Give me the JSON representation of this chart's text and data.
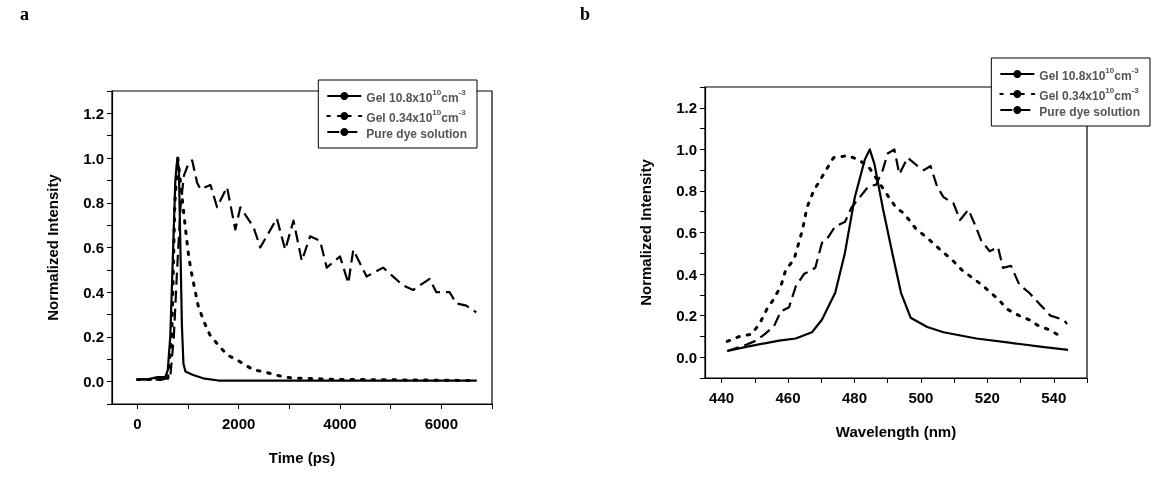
{
  "chart_data": [
    {
      "type": "line",
      "title": "a",
      "xlabel": "Time (ps)",
      "ylabel": "Normalized Intensity",
      "xlim": [
        -500,
        7000
      ],
      "ylim": [
        -0.1,
        1.3
      ],
      "xticks": [
        0,
        {
          "value": 1000,
          "label": null
        },
        2000,
        {
          "value": 3000,
          "label": null
        },
        4000,
        {
          "value": 5000,
          "label": null
        },
        6000,
        {
          "value": 7000,
          "label": null
        }
      ],
      "yticks": [
        {
          "value": -0.1,
          "label": null
        },
        "0.0",
        {
          "value": 0.1,
          "label": null
        },
        0.2,
        {
          "value": 0.3,
          "label": null
        },
        0.4,
        {
          "value": 0.5,
          "label": null
        },
        0.6,
        {
          "value": 0.7,
          "label": null
        },
        0.8,
        {
          "value": 0.9,
          "label": null
        },
        "1.0",
        {
          "value": 1.1,
          "label": null
        },
        1.2,
        {
          "value": 1.3,
          "label": null
        }
      ],
      "grid": false,
      "legend": "top right",
      "marker": "none",
      "series": [
        {
          "name": "Gel 10.8x10$^{10}$cm$^{-3}$",
          "color": "#000000",
          "line_style": "solid",
          "x": [
            0,
            200,
            400,
            550,
            600,
            650,
            700,
            750,
            790,
            820,
            850,
            880,
            910,
            950,
            1100,
            1300,
            1600,
            3000,
            5000,
            6700
          ],
          "values": [
            0.01,
            0.01,
            0.02,
            0.02,
            0.05,
            0.2,
            0.55,
            0.9,
            1.0,
            0.95,
            0.6,
            0.25,
            0.08,
            0.045,
            0.03,
            0.015,
            0.005,
            0.005,
            0.005,
            0.005
          ]
        },
        {
          "name": "Gel 0.34x10$^{10}$cm$^{-3}$",
          "color": "#000000",
          "line_style": "dotted",
          "x": [
            0,
            600,
            680,
            740,
            800,
            918,
            997,
            1049,
            1128,
            1200,
            1311,
            1430,
            1574,
            1770,
            1967,
            2295,
            2492,
            2721,
            2984,
            3213,
            4000,
            6700
          ],
          "values": [
            0.01,
            0.01,
            0.2,
            0.8,
            1.0,
            0.75,
            0.59,
            0.51,
            0.42,
            0.34,
            0.27,
            0.21,
            0.17,
            0.12,
            0.097,
            0.052,
            0.045,
            0.03,
            0.018,
            0.015,
            0.01,
            0.005
          ]
        },
        {
          "name": "Pure dye solution",
          "color": "#000000",
          "line_style": "dashed",
          "x": [
            0,
            500,
            650,
            720,
            787,
            852,
            918,
            1016,
            1082,
            1180,
            1246,
            1443,
            1574,
            1770,
            1934,
            2033,
            2295,
            2426,
            2754,
            2918,
            3082,
            3246,
            3410,
            3607,
            3738,
            4000,
            4164,
            4262,
            4525,
            4852,
            5049,
            5246,
            5443,
            5770,
            5902,
            6164,
            6295,
            6492,
            6689
          ],
          "values": [
            0.01,
            0.01,
            0.02,
            0.2,
            0.51,
            0.78,
            0.92,
            0.98,
            0.99,
            0.89,
            0.86,
            0.88,
            0.78,
            0.87,
            0.68,
            0.78,
            0.69,
            0.6,
            0.73,
            0.59,
            0.72,
            0.54,
            0.65,
            0.63,
            0.51,
            0.56,
            0.44,
            0.59,
            0.47,
            0.51,
            0.47,
            0.43,
            0.41,
            0.46,
            0.4,
            0.4,
            0.35,
            0.34,
            0.31
          ]
        }
      ]
    },
    {
      "type": "line",
      "title": "b",
      "xlabel": "Wavelength (nm)",
      "ylabel": "Normalized Intensity",
      "xlim": [
        435,
        550
      ],
      "ylim": [
        -0.1,
        1.3
      ],
      "xticks": [
        440,
        {
          "value": 450,
          "label": null
        },
        460,
        {
          "value": 470,
          "label": null
        },
        480,
        {
          "value": 490,
          "label": null
        },
        500,
        {
          "value": 510,
          "label": null
        },
        520,
        {
          "value": 530,
          "label": null
        },
        540,
        {
          "value": 550,
          "label": null
        }
      ],
      "yticks": [
        {
          "value": -0.1,
          "label": null
        },
        "0.0",
        {
          "value": 0.1,
          "label": null
        },
        0.2,
        {
          "value": 0.3,
          "label": null
        },
        0.4,
        {
          "value": 0.5,
          "label": null
        },
        0.6,
        {
          "value": 0.7,
          "label": null
        },
        0.8,
        {
          "value": 0.9,
          "label": null
        },
        "1.0",
        {
          "value": 1.1,
          "label": null
        },
        1.2,
        {
          "value": 1.3,
          "label": null
        }
      ],
      "grid": false,
      "legend": "top right",
      "marker": "none",
      "series": [
        {
          "name": "Gel 10.8x10$^{10}$cm$^{-3}$",
          "color": "#000000",
          "line_style": "solid",
          "x": [
            441.7,
            447.4,
            457.3,
            462.3,
            467.2,
            470.2,
            474.2,
            477.1,
            480.1,
            483.1,
            484.6,
            486,
            488.5,
            491,
            494,
            496.9,
            501.9,
            506.8,
            516.7,
            526.6,
            536.5,
            544.3
          ],
          "values": [
            0.03,
            0.05,
            0.08,
            0.09,
            0.12,
            0.18,
            0.31,
            0.5,
            0.77,
            0.95,
            1.0,
            0.93,
            0.72,
            0.53,
            0.31,
            0.19,
            0.145,
            0.12,
            0.09,
            0.07,
            0.05,
            0.035
          ]
        },
        {
          "name": "Gel 0.34x10$^{10}$cm$^{-3}$",
          "color": "#000000",
          "line_style": "dotted",
          "x": [
            441.7,
            445.4,
            448.9,
            451.4,
            453.9,
            455.3,
            457.8,
            459.3,
            461.8,
            464.3,
            465.7,
            467.7,
            470.7,
            473.7,
            478.1,
            481.1,
            484.1,
            487,
            489.5,
            492.5,
            495,
            498.4,
            502.9,
            506.3,
            509.3,
            512.3,
            514.8,
            518.2,
            523.2,
            526.1,
            529.6,
            532.6,
            535.5,
            539,
            542
          ],
          "values": [
            0.076,
            0.1,
            0.11,
            0.16,
            0.24,
            0.27,
            0.34,
            0.42,
            0.47,
            0.61,
            0.72,
            0.8,
            0.88,
            0.96,
            0.97,
            0.95,
            0.92,
            0.85,
            0.79,
            0.72,
            0.69,
            0.62,
            0.56,
            0.51,
            0.47,
            0.42,
            0.39,
            0.35,
            0.28,
            0.23,
            0.2,
            0.18,
            0.15,
            0.13,
            0.1
          ]
        },
        {
          "name": "Pure dye solution",
          "color": "#000000",
          "line_style": "dashed",
          "x": [
            441.7,
            447.4,
            450.4,
            452.9,
            455.8,
            457.8,
            460.3,
            462.3,
            464.8,
            468.2,
            470.2,
            472.2,
            474.2,
            477.1,
            479.1,
            481.6,
            484.1,
            486.5,
            488.5,
            490,
            492,
            493.5,
            496,
            499,
            500.9,
            502.9,
            504.9,
            506.8,
            509.8,
            511.8,
            514.3,
            516.2,
            518.2,
            520.7,
            523.2,
            524.7,
            527.1,
            529.6,
            532.6,
            535.5,
            539,
            543,
            544
          ],
          "values": [
            0.03,
            0.06,
            0.08,
            0.11,
            0.15,
            0.22,
            0.24,
            0.34,
            0.4,
            0.43,
            0.55,
            0.58,
            0.63,
            0.65,
            0.72,
            0.77,
            0.82,
            0.83,
            0.9,
            0.98,
            1.0,
            0.88,
            0.96,
            0.92,
            0.9,
            0.92,
            0.82,
            0.77,
            0.74,
            0.66,
            0.71,
            0.64,
            0.56,
            0.51,
            0.53,
            0.43,
            0.44,
            0.35,
            0.31,
            0.26,
            0.2,
            0.18,
            0.16
          ]
        }
      ]
    }
  ]
}
